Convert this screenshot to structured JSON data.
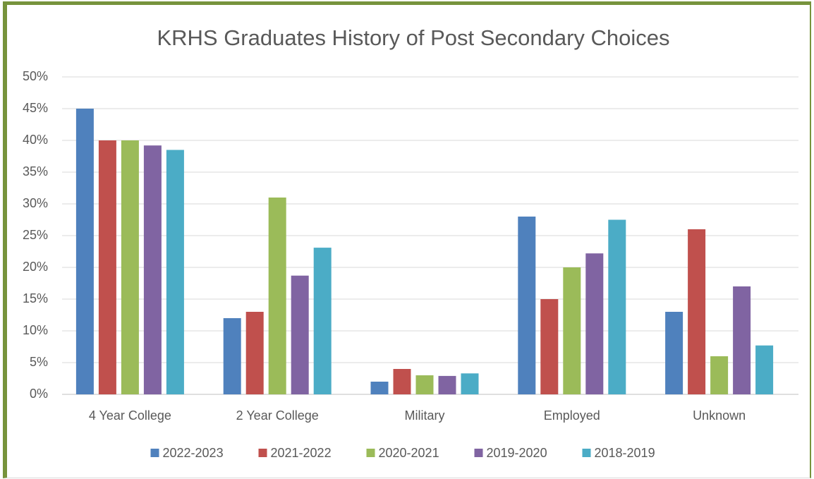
{
  "chart_data": {
    "type": "bar",
    "title": "KRHS Graduates History of Post Secondary Choices",
    "categories": [
      "4 Year College",
      "2 Year College",
      "Military",
      "Employed",
      "Unknown"
    ],
    "series": [
      {
        "name": "2022-2023",
        "color": "#4f81bd",
        "values": [
          45,
          12,
          2,
          28,
          13
        ]
      },
      {
        "name": "2021-2022",
        "color": "#c0504d",
        "values": [
          40,
          13,
          4,
          15,
          26
        ]
      },
      {
        "name": "2020-2021",
        "color": "#9bbb59",
        "values": [
          40,
          31,
          3,
          20,
          6
        ]
      },
      {
        "name": "2019-2020",
        "color": "#8064a2",
        "values": [
          39.2,
          18.7,
          2.9,
          22.2,
          17
        ]
      },
      {
        "name": "2018-2019",
        "color": "#4bacc6",
        "values": [
          38.5,
          23.1,
          3.3,
          27.5,
          7.7
        ]
      }
    ],
    "ylim": [
      0,
      50
    ],
    "yticks": [
      {
        "value": 0,
        "label": "0%"
      },
      {
        "value": 5,
        "label": "5%"
      },
      {
        "value": 10,
        "label": "10%"
      },
      {
        "value": 15,
        "label": "15%"
      },
      {
        "value": 20,
        "label": "20%"
      },
      {
        "value": 25,
        "label": "25%"
      },
      {
        "value": 30,
        "label": "30%"
      },
      {
        "value": 35,
        "label": "35%"
      },
      {
        "value": 40,
        "label": "40%"
      },
      {
        "value": 45,
        "label": "45%"
      },
      {
        "value": 50,
        "label": "50%"
      }
    ],
    "grid": true,
    "legend": "bottom"
  }
}
